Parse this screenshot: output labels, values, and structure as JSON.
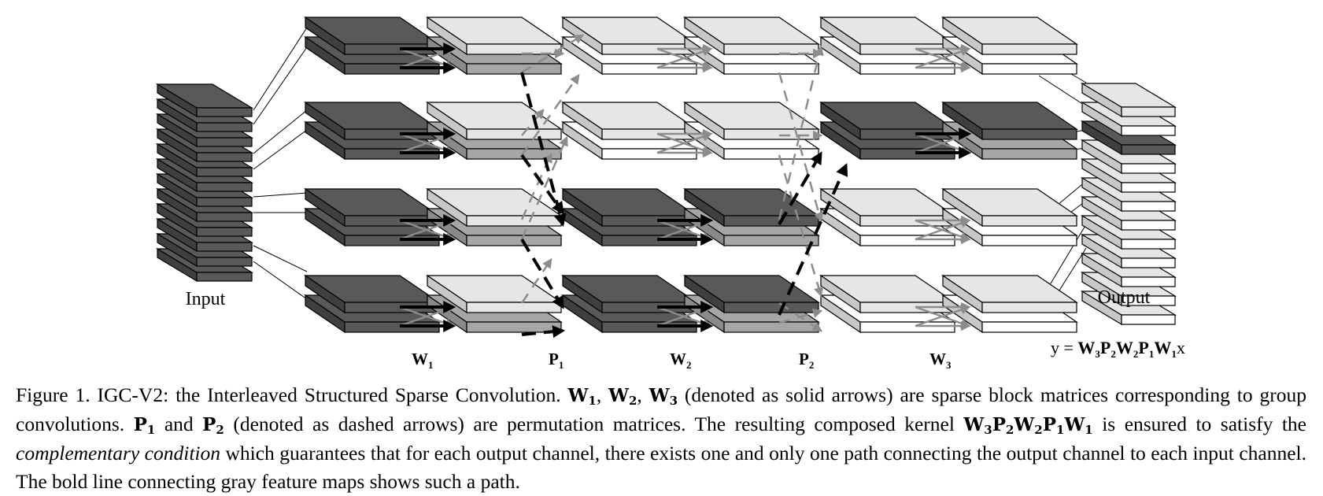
{
  "figure": {
    "labels": {
      "input": "Input",
      "output": "Output",
      "w1": "W",
      "w1_sub": "1",
      "p1": "P",
      "p1_sub": "1",
      "w2": "W",
      "w2_sub": "2",
      "p2": "P",
      "p2_sub": "2",
      "w3": "W",
      "w3_sub": "3"
    },
    "equation": {
      "y": "y = ",
      "W3": "W",
      "s3": "3",
      "P2": "P",
      "s2": "2",
      "W2": "W",
      "sw2": "2",
      "P1": "P",
      "s1": "1",
      "W1": "W",
      "sw1": "1",
      "x": "x"
    },
    "colors": {
      "dark": "#595959",
      "medium": "#a6a6a6",
      "light": "#e6e6e6",
      "white": "#ffffff",
      "dashed": "#8c8c8c",
      "bold": "#000000"
    }
  },
  "caption": {
    "part1": "Figure 1.  IGC-V2: the Interleaved Structured Sparse Convolution. ",
    "m_W1": "W",
    "m_W1s": "1",
    "sep1": ", ",
    "m_W2": "W",
    "m_W2s": "2",
    "sep2": ", ",
    "m_W3": "W",
    "m_W3s": "3",
    "part2": " (denoted as solid arrows) are sparse block matrices corresponding to group convolutions. ",
    "m_P1": "P",
    "m_P1s": "1",
    "and": " and ",
    "m_P2": "P",
    "m_P2s": "2",
    "part3": " (denoted as dashed arrows) are permutation matrices. The resulting composed kernel ",
    "k_W3": "W",
    "k_W3s": "3",
    "k_P2": "P",
    "k_P2s": "2",
    "k_W2": "W",
    "k_W2s": "2",
    "k_P1": "P",
    "k_P1s": "1",
    "k_W1": "W",
    "k_W1s": "1",
    "part4": " is ensured to satisfy the ",
    "italic": "complementary condition",
    "part5": " which guarantees that for each output channel, there exists one and only one path connecting the output channel to each input channel. The bold line connecting gray feature maps shows such a path."
  }
}
